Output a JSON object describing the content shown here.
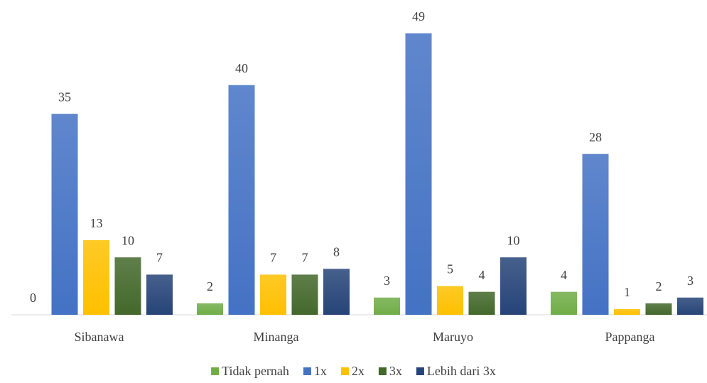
{
  "chart_data": {
    "type": "bar",
    "categories": [
      "Sibanawa",
      "Minanga",
      "Maruyo",
      "Pappanga"
    ],
    "series": [
      {
        "name": "Tidak pernah",
        "color": "#70ad47",
        "values": [
          0,
          2,
          3,
          4
        ]
      },
      {
        "name": "1x",
        "color": "#4472c4",
        "values": [
          35,
          40,
          49,
          28
        ]
      },
      {
        "name": "2x",
        "color": "#ffc000",
        "values": [
          13,
          7,
          5,
          1
        ]
      },
      {
        "name": "3x",
        "color": "#43682b",
        "values": [
          10,
          7,
          4,
          2
        ]
      },
      {
        "name": "Lebih dari 3x",
        "color": "#264478",
        "values": [
          7,
          8,
          10,
          3
        ]
      }
    ],
    "legend": "bottom"
  }
}
